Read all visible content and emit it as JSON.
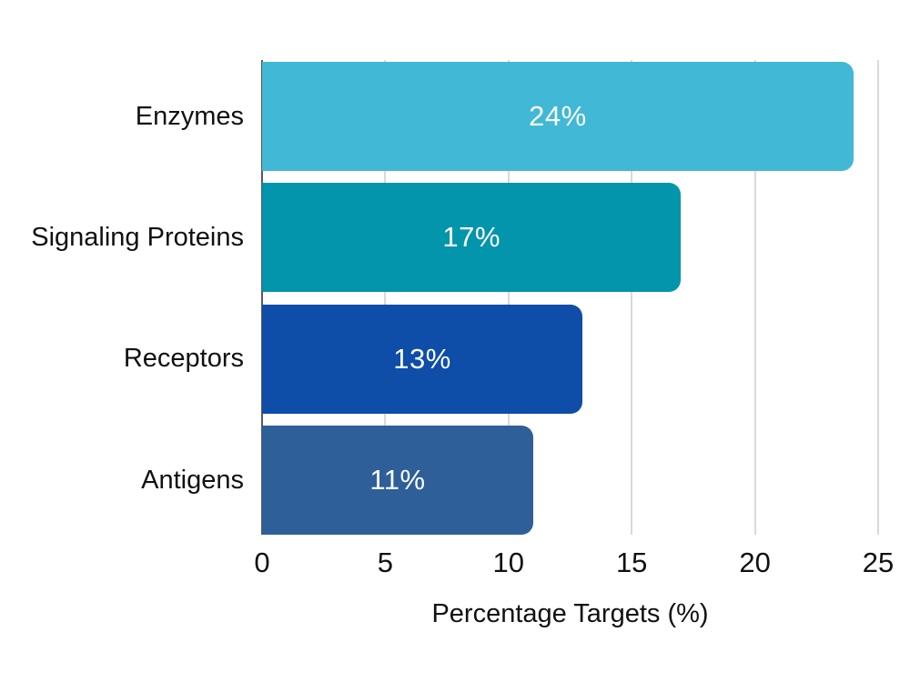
{
  "chart_data": {
    "type": "bar",
    "orientation": "horizontal",
    "categories": [
      "Enzymes",
      "Signaling Proteins",
      "Receptors",
      "Antigens"
    ],
    "values": [
      24,
      17,
      13,
      11
    ],
    "value_labels": [
      "24%",
      "17%",
      "13%",
      "11%"
    ],
    "bar_colors": [
      "#41b8d5",
      "#0295ac",
      "#0e4da8",
      "#2f5f99"
    ],
    "title": "",
    "xlabel": "Percentage Targets (%)",
    "ylabel": "",
    "xlim": [
      0,
      25
    ],
    "xticks": [
      0,
      5,
      10,
      15,
      20,
      25
    ],
    "tick_labels": [
      "0",
      "5",
      "10",
      "15",
      "20",
      "25"
    ],
    "grid": "vertical-gridlines-on",
    "legend": "none",
    "colors": {
      "background": "#ffffff",
      "gridline": "#d9d9d9",
      "axis_line": "#595959",
      "category_text": "#111111",
      "tick_text": "#111111",
      "value_text": "#fbfdfe"
    }
  }
}
